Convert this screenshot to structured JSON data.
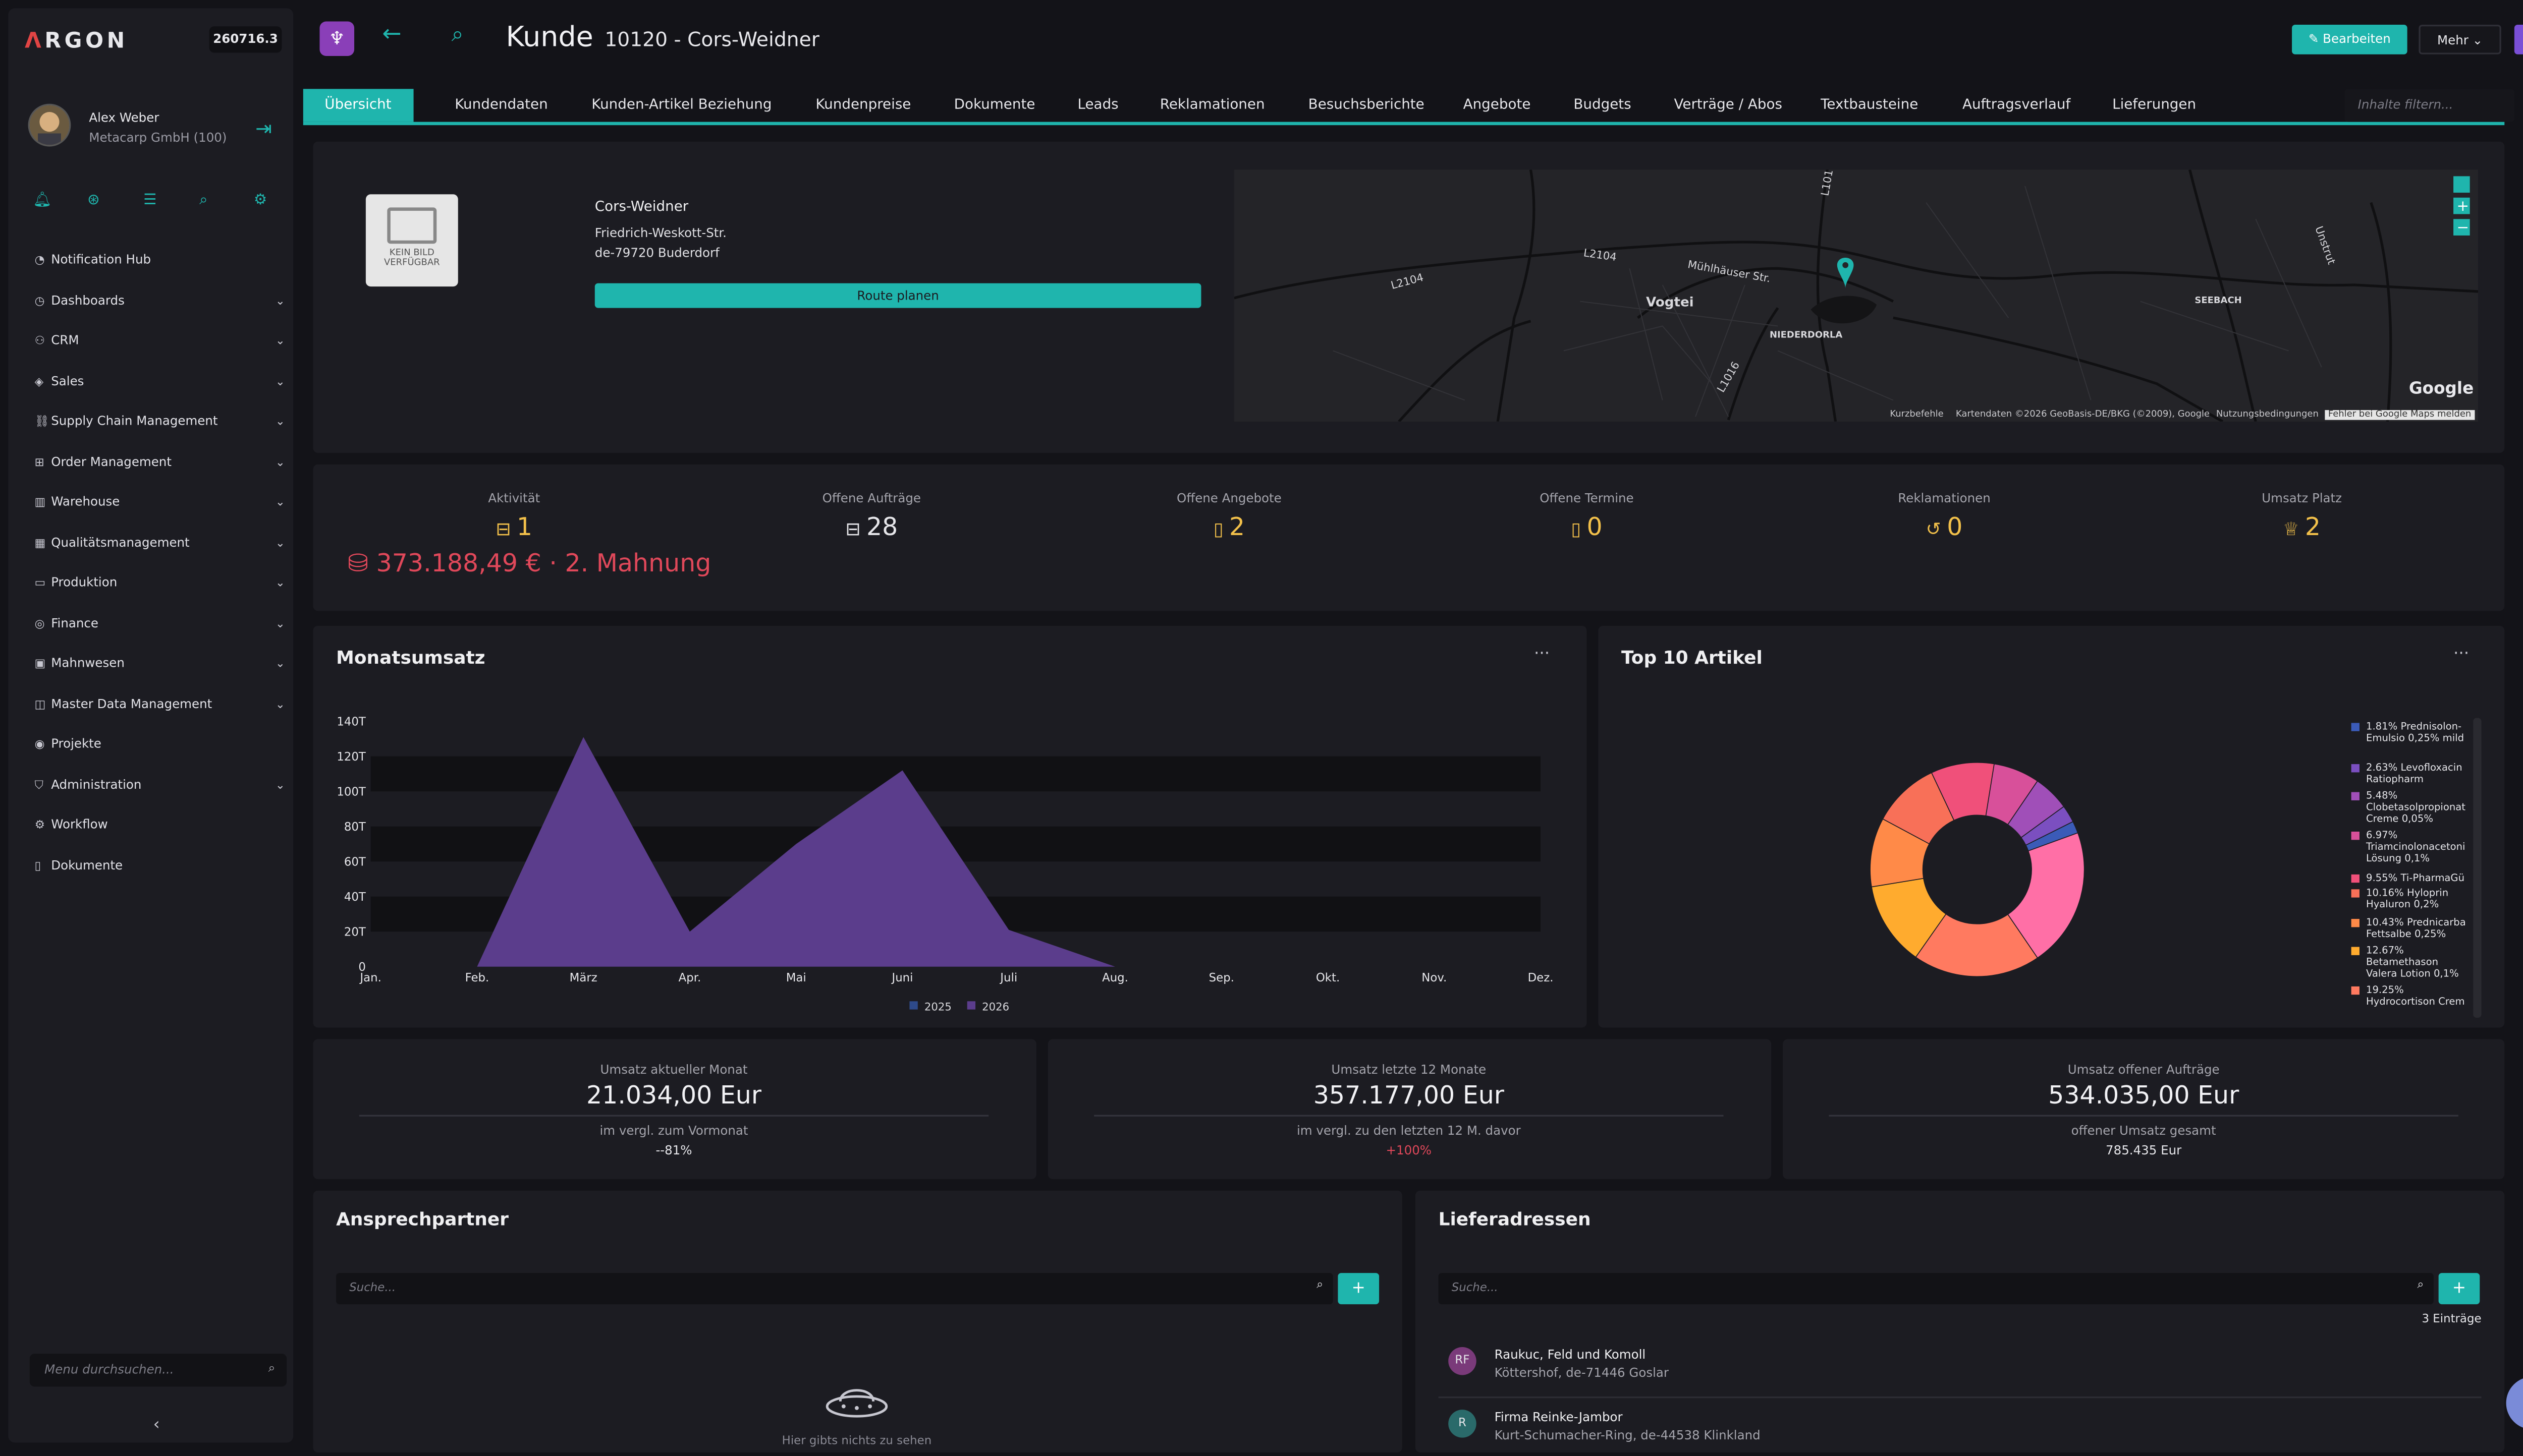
{
  "app": {
    "logo": "RGON",
    "logo_mark": "Λ",
    "build": "260716.3"
  },
  "user": {
    "name": "Alex Weber",
    "company": "Metacarp GmbH (100)"
  },
  "sidebar": {
    "items": [
      {
        "label": "Notification Hub",
        "icon": "bell-icon",
        "has_children": false
      },
      {
        "label": "Dashboards",
        "icon": "dashboard-icon",
        "has_children": true
      },
      {
        "label": "CRM",
        "icon": "users-icon",
        "has_children": true
      },
      {
        "label": "Sales",
        "icon": "tag-icon",
        "has_children": true
      },
      {
        "label": "Supply Chain Management",
        "icon": "link-icon",
        "has_children": true
      },
      {
        "label": "Order Management",
        "icon": "cart-icon",
        "has_children": true
      },
      {
        "label": "Warehouse",
        "icon": "warehouse-icon",
        "has_children": true
      },
      {
        "label": "Qualitätsmanagement",
        "icon": "clipboard-icon",
        "has_children": true
      },
      {
        "label": "Produktion",
        "icon": "folder-icon",
        "has_children": true
      },
      {
        "label": "Finance",
        "icon": "finance-icon",
        "has_children": true
      },
      {
        "label": "Mahnwesen",
        "icon": "inbox-icon",
        "has_children": true
      },
      {
        "label": "Master Data Management",
        "icon": "data-icon",
        "has_children": true
      },
      {
        "label": "Projekte",
        "icon": "pin-icon",
        "has_children": false
      },
      {
        "label": "Administration",
        "icon": "shield-icon",
        "has_children": true
      },
      {
        "label": "Workflow",
        "icon": "workflow-icon",
        "has_children": false
      },
      {
        "label": "Dokumente",
        "icon": "document-icon",
        "has_children": false
      }
    ],
    "search_placeholder": "Menu durchsuchen..."
  },
  "header": {
    "title": "Kunde",
    "subtitle": "10120 - Cors-Weidner",
    "edit_label": "Bearbeiten",
    "more_label": "Mehr"
  },
  "tabs": [
    "Übersicht",
    "Kundendaten",
    "Kunden-Artikel Beziehung",
    "Kundenpreise",
    "Dokumente",
    "Leads",
    "Reklamationen",
    "Besuchsberichte",
    "Angebote",
    "Budgets",
    "Verträge / Abos",
    "Textbausteine",
    "Auftragsverlauf",
    "Lieferungen"
  ],
  "filter_placeholder": "Inhalte filtern...",
  "customer": {
    "no_image_line1": "KEIN BILD",
    "no_image_line2": "VERFÜGBAR",
    "name": "Cors-Weidner",
    "street": "Friedrich-Weskott-Str.",
    "city": "de-79720 Buderdorf",
    "route_label": "Route planen"
  },
  "map": {
    "labels": {
      "vogtei": "Vogtei",
      "niederdorla": "NIEDERDORLA",
      "seebach": "SEEBACH",
      "l2104a": "L2104",
      "l2104b": "L2104",
      "l1016": "L1016",
      "l101": "L101",
      "muehlhaeuser": "Mühlhäuser Str.",
      "unstrut": "Unstrut"
    },
    "google": "Google",
    "footer": [
      "Kurzbefehle",
      "Kartendaten ©2026 GeoBasis-DE/BKG (©2009), Google",
      "Nutzungsbedingungen",
      "Fehler bei Google Maps melden"
    ]
  },
  "kpis": [
    {
      "label": "Aktivität",
      "value": "1",
      "icon": "briefcase-icon",
      "color": "#f2c04a"
    },
    {
      "label": "Offene Aufträge",
      "value": "28",
      "icon": "briefcase-icon",
      "color": "#e6e6ea"
    },
    {
      "label": "Offene Angebote",
      "value": "2",
      "icon": "clipboard-icon",
      "color": "#f2c04a"
    },
    {
      "label": "Offene Termine",
      "value": "0",
      "icon": "clipboard-icon",
      "color": "#f2c04a"
    },
    {
      "label": "Reklamationen",
      "value": "0",
      "icon": "undo-icon",
      "color": "#f2c04a"
    },
    {
      "label": "Umsatz Platz",
      "value": "2",
      "icon": "trophy-icon",
      "color": "#f2c04a"
    }
  ],
  "dunning": "373.188,49 € · 2. Mahnung",
  "monthly": {
    "title": "Monatsumsatz",
    "menu": "···"
  },
  "top10": {
    "title": "Top 10 Artikel",
    "menu": "···"
  },
  "chart_data": [
    {
      "type": "area",
      "title": "Monatsumsatz",
      "categories": [
        "Jan.",
        "Feb.",
        "März",
        "Apr.",
        "Mai",
        "Juni",
        "Juli",
        "Aug.",
        "Sep.",
        "Okt.",
        "Nov.",
        "Dez."
      ],
      "y_ticks": [
        "0",
        "20T",
        "40T",
        "60T",
        "80T",
        "100T",
        "120T",
        "140T"
      ],
      "ylim": [
        0,
        140000
      ],
      "grid": "alternating bands",
      "legend_position": "bottom",
      "series": [
        {
          "name": "2025",
          "color": "#2e4a8a",
          "values": [
            0,
            0,
            0,
            0,
            0,
            0,
            0,
            0,
            0,
            0,
            0,
            0
          ]
        },
        {
          "name": "2026",
          "color": "#5b3d8c",
          "values": [
            0,
            0,
            131000,
            20000,
            70000,
            112000,
            21000,
            0,
            null,
            null,
            null,
            null
          ]
        }
      ]
    },
    {
      "type": "pie",
      "title": "Top 10 Artikel",
      "legend_position": "right",
      "slices": [
        {
          "label": "Prednisolon-Emulsion 0,25% mild",
          "pct": 1.81,
          "display": "1.81%",
          "text": "Prednisolon-Emulsio 0,25% mild",
          "color": "#3b5bb8"
        },
        {
          "label": "Levofloxacin Ratiopharm",
          "pct": 2.63,
          "display": "2.63%",
          "text": "Levofloxacin Ratiopharm",
          "color": "#7b4fc0"
        },
        {
          "label": "Clobetasolpropionat Creme 0,05%",
          "pct": 5.48,
          "display": "5.48%",
          "text": "Clobetasolpropionat Creme 0,05%",
          "color": "#a04fb8"
        },
        {
          "label": "Triamcinolonacetonid Lösung 0,1%",
          "pct": 6.97,
          "display": "6.97%",
          "text": "Triamcinolonacetoni Lösung 0,1%",
          "color": "#d8509a"
        },
        {
          "label": "Ti-PharmaGü",
          "pct": 9.55,
          "display": "9.55%",
          "text": "Ti-PharmaGü",
          "color": "#f0507a"
        },
        {
          "label": "Hyloprin Hyaluron 0,2%",
          "pct": 10.16,
          "display": "10.16%",
          "text": "Hyloprin Hyaluron 0,2%",
          "color": "#f87058"
        },
        {
          "label": "Prednicarbat Fettsalbe 0,25%",
          "pct": 10.43,
          "display": "10.43%",
          "text": "Prednicarba Fettsalbe 0,25%",
          "color": "#ff8a48"
        },
        {
          "label": "Betamethason Valerat Lotion 0,1%",
          "pct": 12.67,
          "display": "12.67%",
          "text": "Betamethason Valera Lotion 0,1%",
          "color": "#ffab2e"
        },
        {
          "label": "Hydrocortison Creme",
          "pct": 19.25,
          "display": "19.25%",
          "text": "Hydrocortison Crem",
          "color": "#ff7a60"
        },
        {
          "label": "(weitere)",
          "pct": 21.05,
          "display": "",
          "text": "",
          "color": "#ff6fa6"
        }
      ]
    }
  ],
  "stats": [
    {
      "label": "Umsatz aktueller Monat",
      "value": "21.034,00 Eur",
      "sub": "im vergl. zum Vormonat",
      "pct": "--81%",
      "red": false
    },
    {
      "label": "Umsatz letzte 12 Monate",
      "value": "357.177,00 Eur",
      "sub": "im vergl. zu den letzten 12 M. davor",
      "pct": "+100%",
      "red": true
    },
    {
      "label": "Umsatz offener Aufträge",
      "value": "534.035,00 Eur",
      "sub": "offener Umsatz gesamt",
      "pct": "785.435   Eur",
      "red": false
    }
  ],
  "contacts": {
    "title": "Ansprechpartner",
    "search_placeholder": "Suche...",
    "empty": "Hier gibts nichts zu sehen"
  },
  "deliveries": {
    "title": "Lieferadressen",
    "search_placeholder": "Suche...",
    "count": "3 Einträge",
    "items": [
      {
        "initials": "RF",
        "name": "Raukuc, Feld und Komoll",
        "address": "Köttershof, de-71446 Goslar",
        "color": "#7a3a7a"
      },
      {
        "initials": "R",
        "name": "Firma Reinke-Jambor",
        "address": "Kurt-Schumacher-Ring, de-44538 Klinkland",
        "color": "#2a6a6a"
      }
    ]
  }
}
